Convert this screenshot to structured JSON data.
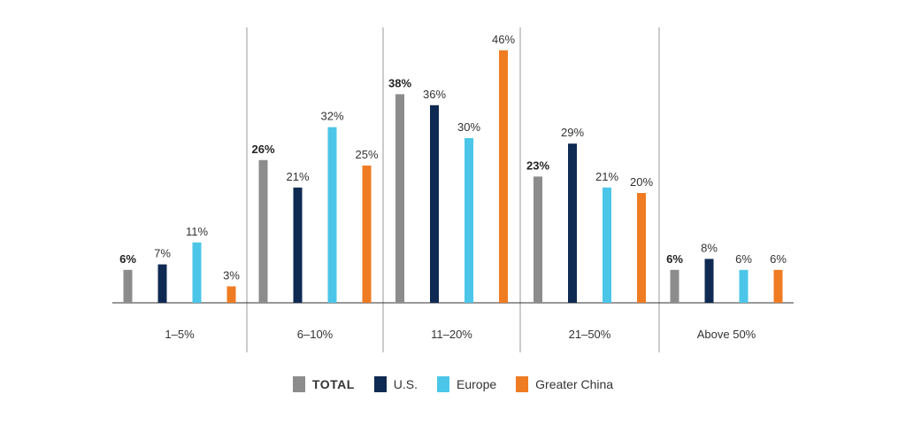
{
  "chart_data": {
    "type": "bar",
    "categories": [
      "1–5%",
      "6–10%",
      "11–20%",
      "21–50%",
      "Above 50%"
    ],
    "series": [
      {
        "name": "TOTAL",
        "color": "#8c8c8c",
        "bold": true,
        "values": [
          6,
          26,
          38,
          23,
          6
        ]
      },
      {
        "name": "U.S.",
        "color": "#0f2a52",
        "bold": false,
        "values": [
          7,
          21,
          36,
          29,
          8
        ]
      },
      {
        "name": "Europe",
        "color": "#4cc6e8",
        "bold": false,
        "values": [
          11,
          32,
          30,
          21,
          6
        ]
      },
      {
        "name": "Greater China",
        "color": "#ef7b22",
        "bold": false,
        "values": [
          3,
          25,
          46,
          20,
          6
        ]
      }
    ],
    "value_suffix": "%",
    "ylim": [
      0,
      50
    ],
    "grid": false,
    "legend_position": "bottom"
  }
}
